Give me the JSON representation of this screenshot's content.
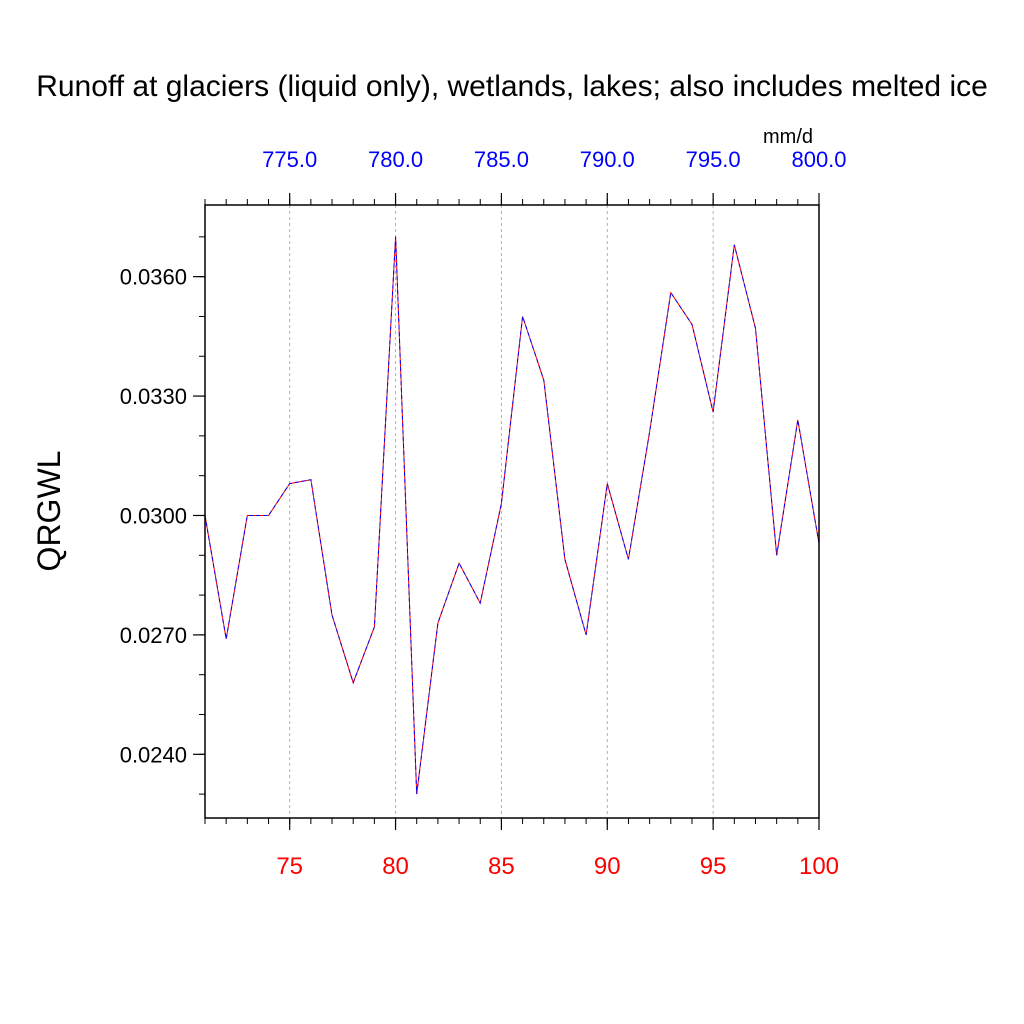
{
  "chart_data": {
    "type": "line",
    "title": "Runoff at glaciers (liquid only), wetlands, lakes; also includes melted ice",
    "ylabel": "QRGWL",
    "top_axis_units": "mm/d",
    "xlim": [
      71,
      100
    ],
    "ylim": [
      0.0224,
      0.0378
    ],
    "x_ticks": [
      75,
      80,
      85,
      90,
      95,
      100
    ],
    "x_tick_labels": [
      "75",
      "80",
      "85",
      "90",
      "95",
      "100"
    ],
    "y_ticks": [
      0.024,
      0.027,
      0.03,
      0.033,
      0.036
    ],
    "y_tick_labels": [
      "0.0240",
      "0.0270",
      "0.0300",
      "0.0330",
      "0.0360"
    ],
    "top_ticks": [
      75,
      80,
      85,
      90,
      95,
      100
    ],
    "top_tick_labels": [
      "775.0",
      "780.0",
      "785.0",
      "790.0",
      "795.0",
      "800.0"
    ],
    "grid": "vertical dashed at major x ticks",
    "series": [
      {
        "line_colors": [
          "#ff0000",
          "#0000ff"
        ],
        "x": [
          71,
          72,
          73,
          74,
          75,
          76,
          77,
          78,
          79,
          80,
          81,
          82,
          83,
          84,
          85,
          86,
          87,
          88,
          89,
          90,
          91,
          92,
          93,
          94,
          95,
          96,
          97,
          98,
          99,
          100
        ],
        "values": [
          0.03,
          0.0269,
          0.03,
          0.03,
          0.0308,
          0.0309,
          0.0275,
          0.0258,
          0.0272,
          0.037,
          0.023,
          0.0273,
          0.0288,
          0.0278,
          0.0303,
          0.035,
          0.0334,
          0.0289,
          0.027,
          0.0308,
          0.0289,
          0.0321,
          0.0356,
          0.0348,
          0.0326,
          0.0368,
          0.0347,
          0.029,
          0.0324,
          0.0293
        ]
      }
    ],
    "colors": {
      "bottom_tick_labels": "#ff0000",
      "top_tick_labels": "#0000ff",
      "axis": "#000000",
      "grid": "#b0b0b0"
    }
  }
}
